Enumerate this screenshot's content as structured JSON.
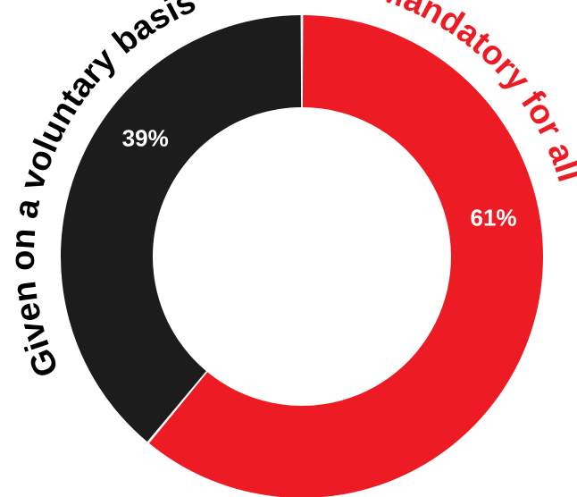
{
  "chart_data": {
    "type": "pie",
    "variant": "donut",
    "slices": [
      {
        "label": "Mandatory for all",
        "value": 61,
        "value_label": "61%",
        "color": "#ed1c24"
      },
      {
        "label": "Given on a voluntary basis",
        "value": 39,
        "value_label": "39%",
        "color": "#1c1c1c"
      }
    ],
    "start": "top",
    "direction": "clockwise",
    "legend": "none"
  }
}
